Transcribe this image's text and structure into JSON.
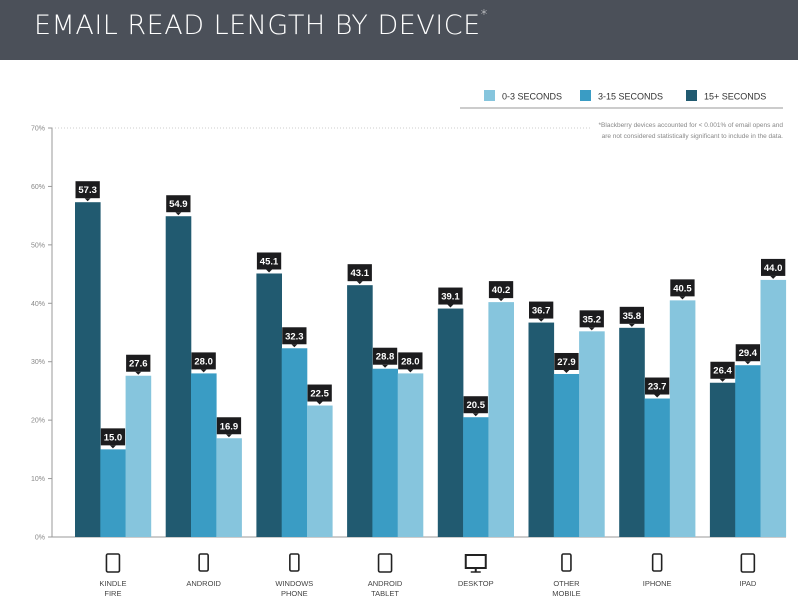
{
  "chart_data": {
    "type": "bar",
    "title": "EMAIL READ LENGTH BY DEVICE",
    "title_mark": "*",
    "note_lines": [
      "*Blackberry devices accounted for < 0.001% of email opens and",
      "are not considered statistically significant to include in the data."
    ],
    "categories": [
      {
        "lines": [
          "KINDLE",
          "FIRE"
        ],
        "icon": "tablet-icon"
      },
      {
        "lines": [
          "ANDROID"
        ],
        "icon": "smartphone-icon"
      },
      {
        "lines": [
          "WINDOWS",
          "PHONE"
        ],
        "icon": "smartphone-icon"
      },
      {
        "lines": [
          "ANDROID",
          "TABLET"
        ],
        "icon": "tablet-icon"
      },
      {
        "lines": [
          "DESKTOP"
        ],
        "icon": "monitor-icon"
      },
      {
        "lines": [
          "OTHER",
          "MOBILE"
        ],
        "icon": "smartphone-icon"
      },
      {
        "lines": [
          "IPHONE"
        ],
        "icon": "smartphone-icon"
      },
      {
        "lines": [
          "IPAD"
        ],
        "icon": "tablet-icon"
      }
    ],
    "series": [
      {
        "name": "15+ SECONDS",
        "color": "#215a70",
        "values": [
          57.3,
          54.9,
          45.1,
          43.1,
          39.1,
          36.7,
          35.8,
          26.4
        ]
      },
      {
        "name": "3-15 SECONDS",
        "color": "#3a9cc4",
        "values": [
          15.0,
          28.0,
          32.3,
          28.8,
          20.5,
          27.9,
          23.7,
          29.4
        ]
      },
      {
        "name": "0-3 SECONDS",
        "color": "#86c5dd",
        "values": [
          27.6,
          16.9,
          22.5,
          28.0,
          40.2,
          35.2,
          40.5,
          44.0
        ]
      }
    ],
    "legend_order": [
      "0-3 SECONDS",
      "3-15 SECONDS",
      "15+ SECONDS"
    ],
    "legend_placement": "top-right",
    "ylim": [
      0,
      70
    ],
    "yticks": [
      "0%",
      "10%",
      "20%",
      "30%",
      "40%",
      "50%",
      "60%",
      "70%"
    ],
    "grid": false,
    "label_box_color": "#1c1c1e"
  }
}
